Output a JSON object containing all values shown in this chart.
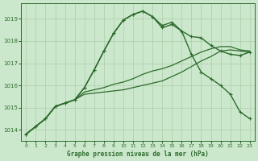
{
  "title": "Graphe pression niveau de la mer (hPa)",
  "background_color": "#cce8cc",
  "grid_color": "#aaccaa",
  "line_color": "#2d6b2d",
  "x_labels": [
    "0",
    "1",
    "2",
    "3",
    "4",
    "5",
    "6",
    "7",
    "8",
    "9",
    "10",
    "11",
    "12",
    "13",
    "14",
    "15",
    "16",
    "17",
    "18",
    "19",
    "20",
    "21",
    "22",
    "23"
  ],
  "ylim": [
    1013.5,
    1019.7
  ],
  "yticks": [
    1014,
    1015,
    1016,
    1017,
    1018,
    1019
  ],
  "series": [
    {
      "y": [
        1013.8,
        1014.15,
        1014.5,
        1015.05,
        1015.2,
        1015.35,
        1015.9,
        1016.7,
        1017.55,
        1018.35,
        1018.95,
        1019.2,
        1019.35,
        1019.1,
        1018.6,
        1018.75,
        1018.45,
        1018.2,
        1018.15,
        1017.8,
        1017.55,
        1017.4,
        1017.35,
        1017.5
      ],
      "marker": true,
      "lw": 1.0
    },
    {
      "y": [
        1013.8,
        1014.15,
        1014.5,
        1015.05,
        1015.2,
        1015.35,
        1015.9,
        1016.7,
        1017.55,
        1018.35,
        1018.95,
        1019.2,
        1019.35,
        1019.1,
        1018.7,
        1018.85,
        1018.45,
        1017.4,
        1016.6,
        1016.3,
        1016.0,
        1015.6,
        1014.8,
        1014.5
      ],
      "marker": true,
      "lw": 1.0
    },
    {
      "y": [
        1013.8,
        1014.15,
        1014.5,
        1015.05,
        1015.2,
        1015.35,
        1015.7,
        1015.8,
        1015.9,
        1016.05,
        1016.15,
        1016.3,
        1016.5,
        1016.65,
        1016.75,
        1016.9,
        1017.1,
        1017.3,
        1017.5,
        1017.65,
        1017.75,
        1017.75,
        1017.6,
        1017.55
      ],
      "marker": false,
      "lw": 0.9
    },
    {
      "y": [
        1013.8,
        1014.15,
        1014.5,
        1015.05,
        1015.2,
        1015.35,
        1015.6,
        1015.65,
        1015.7,
        1015.75,
        1015.8,
        1015.9,
        1016.0,
        1016.1,
        1016.2,
        1016.4,
        1016.6,
        1016.85,
        1017.1,
        1017.3,
        1017.55,
        1017.6,
        1017.55,
        1017.5
      ],
      "marker": false,
      "lw": 0.9
    }
  ],
  "figsize": [
    3.2,
    2.0
  ],
  "dpi": 100
}
